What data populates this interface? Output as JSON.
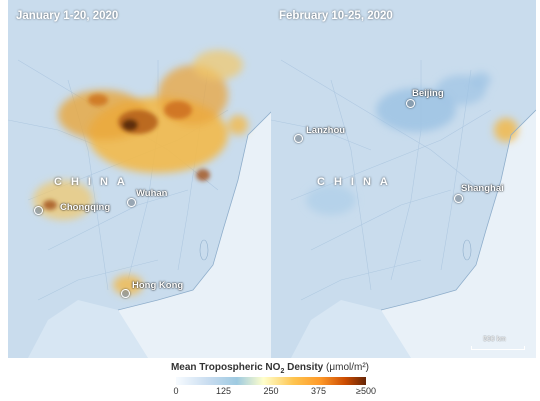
{
  "panels": [
    {
      "title": "January 1-20, 2020",
      "country_label": "CHINA",
      "cities": [
        "Chongqing",
        "Wuhan",
        "Hong Kong"
      ]
    },
    {
      "title": "February 10-25, 2020",
      "country_label": "CHINA",
      "cities": [
        "Beijing",
        "Lanzhou",
        "Shanghai"
      ]
    }
  ],
  "scale": {
    "label": "500 km"
  },
  "legend": {
    "title": "Mean Tropospheric NO",
    "title_sub": "2",
    "title_rest": " Density ",
    "unit": "(μmol/m²)",
    "ticks": [
      "0",
      "125",
      "250",
      "375",
      "≥500"
    ],
    "colors": [
      "#f7fbff",
      "#c6dbef",
      "#9ecae1",
      "#fec44f",
      "#fe9929",
      "#cc4c02",
      "#662506"
    ]
  }
}
